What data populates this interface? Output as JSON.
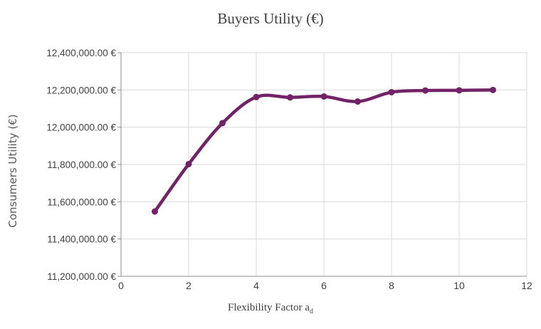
{
  "chart_data": {
    "type": "line",
    "title": "Buyers Utility (€)",
    "xlabel": "Flexibility Factor a",
    "xlabel_subscript": "d",
    "ylabel": "Consumers Utility (€)",
    "xlim": [
      0,
      12
    ],
    "ylim": [
      11200000,
      12400000
    ],
    "x_ticks": [
      0,
      2,
      4,
      6,
      8,
      10,
      12
    ],
    "y_ticks": [
      11200000,
      11400000,
      11600000,
      11800000,
      12000000,
      12200000,
      12400000
    ],
    "y_tick_labels": [
      "11,200,000.00 €",
      "11,400,000.00 €",
      "11,600,000.00 €",
      "11,800,000.00 €",
      "12,000,000.00 €",
      "12,200,000.00 €",
      "12,400,000.00 €"
    ],
    "grid": true,
    "smooth": true,
    "series": [
      {
        "color": "#722266",
        "x": [
          1,
          2,
          3,
          4,
          5,
          6,
          7,
          8,
          9,
          10,
          11
        ],
        "y": [
          11548000,
          11802000,
          12022000,
          12162000,
          12160000,
          12165000,
          12138000,
          12188000,
          12197000,
          12198000,
          12200000
        ]
      }
    ]
  }
}
